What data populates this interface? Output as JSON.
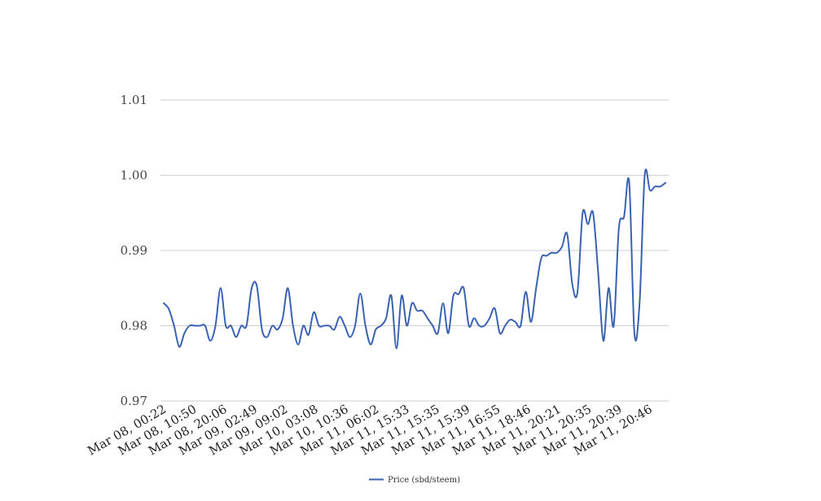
{
  "chart_data": {
    "type": "line",
    "title": "",
    "xlabel": "",
    "ylabel": "",
    "ylim": [
      0.97,
      1.01
    ],
    "yticks": [
      "0.97",
      "0.98",
      "0.99",
      "1.00",
      "1.01"
    ],
    "x_tick_labels": [
      "Mar 08, 00:22",
      "Mar 08, 10:50",
      "Mar 08, 20:06",
      "Mar 09, 02:49",
      "Mar 09, 09:02",
      "Mar 10, 03:08",
      "Mar 10, 10:36",
      "Mar 11, 06:02",
      "Mar 11, 15:33",
      "Mar 11, 15:35",
      "Mar 11, 15:39",
      "Mar 11, 16:55",
      "Mar 11, 18:46",
      "Mar 11, 20:21",
      "Mar 11, 20:35",
      "Mar 11, 20:39",
      "Mar 11, 20:46"
    ],
    "grid": true,
    "legend_position": "bottom-center",
    "series": [
      {
        "name": "Price (sbd/steem)",
        "color": "#3a62b3",
        "values": [
          0.983,
          0.9822,
          0.98,
          0.9772,
          0.979,
          0.98,
          0.98,
          0.98,
          0.98,
          0.978,
          0.98,
          0.985,
          0.98,
          0.98,
          0.9785,
          0.98,
          0.98,
          0.985,
          0.9853,
          0.9795,
          0.9785,
          0.98,
          0.9795,
          0.981,
          0.985,
          0.98,
          0.9775,
          0.98,
          0.9788,
          0.9818,
          0.98,
          0.98,
          0.98,
          0.9795,
          0.9812,
          0.98,
          0.9785,
          0.98,
          0.9843,
          0.98,
          0.9775,
          0.9795,
          0.98,
          0.981,
          0.984,
          0.977,
          0.984,
          0.98,
          0.983,
          0.982,
          0.982,
          0.981,
          0.98,
          0.979,
          0.983,
          0.979,
          0.984,
          0.9842,
          0.985,
          0.98,
          0.981,
          0.98,
          0.98,
          0.981,
          0.9823,
          0.979,
          0.98,
          0.9808,
          0.9805,
          0.98,
          0.9845,
          0.9805,
          0.985,
          0.989,
          0.9893,
          0.9897,
          0.9897,
          0.9905,
          0.9922,
          0.9855,
          0.9845,
          0.995,
          0.9935,
          0.995,
          0.987,
          0.978,
          0.985,
          0.98,
          0.993,
          0.9945,
          0.999,
          0.979,
          0.983,
          1.0,
          0.998,
          0.9985,
          0.9985,
          0.999
        ]
      }
    ]
  }
}
